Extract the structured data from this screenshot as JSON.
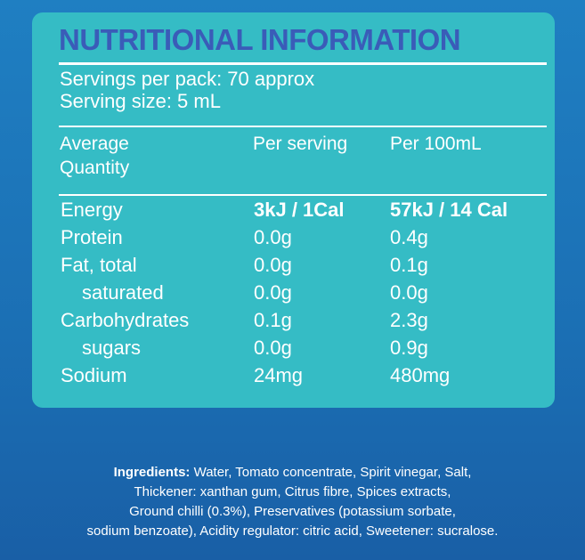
{
  "title": "NUTRITIONAL INFORMATION",
  "servings": {
    "per_pack": "Servings per pack:  70 approx",
    "size": "Serving size: 5 mL"
  },
  "headers": {
    "quantity_line1": "Average",
    "quantity_line2": "Quantity",
    "per_serving": "Per serving",
    "per_100": "Per 100mL"
  },
  "rows": [
    {
      "name": "Energy",
      "per_serving": "3kJ / 1Cal",
      "per_100": "57kJ / 14 Cal"
    },
    {
      "name": "Protein",
      "per_serving": "0.0g",
      "per_100": "0.4g"
    },
    {
      "name": "Fat, total",
      "per_serving": "0.0g",
      "per_100": "0.1g"
    },
    {
      "name": "saturated",
      "per_serving": "0.0g",
      "per_100": "0.0g"
    },
    {
      "name": "Carbohydrates",
      "per_serving": "0.1g",
      "per_100": "2.3g"
    },
    {
      "name": "sugars",
      "per_serving": "0.0g",
      "per_100": "0.9g"
    },
    {
      "name": "Sodium",
      "per_serving": "24mg",
      "per_100": "480mg"
    }
  ],
  "ingredients": {
    "label": "Ingredients:",
    "line1": "Water, Tomato concentrate, Spirit vinegar, Salt,",
    "line2": "Thickener: xanthan gum, Citrus fibre, Spices extracts,",
    "line3": "Ground chilli (0.3%), Preservatives (potassium sorbate,",
    "line4": "sodium benzoate),  Acidity regulator: citric acid, Sweetener: sucralose."
  }
}
